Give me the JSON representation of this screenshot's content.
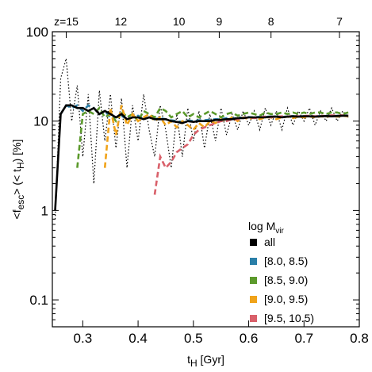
{
  "chart_data": {
    "type": "line",
    "xlabel": [
      "t",
      "H",
      " [Gyr]"
    ],
    "ylabel": [
      "<f",
      "esc",
      "> (< t",
      "H",
      ") [%]"
    ],
    "legend_title": [
      "log M",
      "vir"
    ],
    "legend": "lower right",
    "ylog": true,
    "xlim": [
      0.245,
      0.8
    ],
    "xticks": [
      0.3,
      0.4,
      0.5,
      0.6,
      0.7,
      0.8
    ],
    "ylim": [
      0.05,
      100
    ],
    "yticks": [
      0.1,
      1,
      10,
      100
    ],
    "x2ticks": [
      {
        "value": 15,
        "label": "z=15"
      },
      12,
      10,
      9,
      8,
      7
    ],
    "x": [
      0.25,
      0.26,
      0.27,
      0.28,
      0.29,
      0.3,
      0.31,
      0.32,
      0.33,
      0.34,
      0.35,
      0.36,
      0.37,
      0.38,
      0.39,
      0.4,
      0.41,
      0.42,
      0.43,
      0.44,
      0.45,
      0.46,
      0.47,
      0.48,
      0.49,
      0.5,
      0.51,
      0.52,
      0.53,
      0.54,
      0.55,
      0.56,
      0.57,
      0.58,
      0.59,
      0.6,
      0.61,
      0.62,
      0.63,
      0.64,
      0.65,
      0.66,
      0.67,
      0.68,
      0.69,
      0.7,
      0.71,
      0.72,
      0.73,
      0.74,
      0.75,
      0.76,
      0.77,
      0.78
    ],
    "series": [
      {
        "name": null,
        "color": "#000000",
        "dash": "dotted",
        "values": [
          0.8,
          30,
          50,
          10,
          25,
          4,
          20,
          2,
          22,
          6,
          20,
          5,
          18,
          3,
          15,
          6,
          20,
          8,
          4,
          15,
          8,
          3,
          12,
          4,
          14,
          6,
          13,
          5,
          12,
          6,
          14,
          7,
          12,
          8,
          13,
          9,
          13,
          8,
          14,
          9,
          13,
          8,
          14,
          9,
          13,
          10,
          14,
          9,
          13,
          10,
          14,
          10,
          13,
          11
        ]
      },
      {
        "name": "[8.0, 8.5)",
        "color": "#2a7fa8",
        "dash": "dashed",
        "values": [
          null,
          12,
          15,
          14,
          15,
          13,
          15,
          14,
          12,
          13,
          11,
          11,
          11.5,
          10.5,
          11,
          11.5,
          10.5,
          11,
          10.5,
          10.8,
          10.5,
          10.2,
          10,
          9.8,
          10.2,
          10,
          10.2,
          10.2,
          10.4,
          10.5,
          10.5,
          10.8,
          10.6,
          11,
          10.9,
          11.1,
          11,
          11.2,
          11.1,
          11.3,
          11.2,
          11.1,
          11.3,
          11.4,
          11.2,
          11.4,
          11.3,
          11.3,
          11.4,
          11.5,
          11.3,
          11.5,
          11.6,
          11.5
        ]
      },
      {
        "name": "[8.5, 9.0)",
        "color": "#5c9a2c",
        "dash": "dashed",
        "values": [
          null,
          null,
          null,
          null,
          3,
          12,
          13,
          12,
          14,
          11,
          12,
          10,
          13,
          11,
          12,
          10,
          13,
          12,
          11,
          14,
          13,
          11,
          12,
          13,
          11,
          12,
          11,
          12,
          13,
          12,
          11,
          12,
          12.5,
          11.5,
          12,
          12.5,
          12,
          11.5,
          12.5,
          12,
          12,
          12.5,
          12,
          12.5,
          12,
          12.5,
          12,
          12.5,
          12.5,
          12,
          12.5,
          12.5,
          12,
          12.5
        ]
      },
      {
        "name": "[9.0, 9.5)",
        "color": "#f0a31a",
        "dash": "dashed",
        "values": [
          null,
          null,
          null,
          null,
          null,
          null,
          null,
          null,
          null,
          3,
          14,
          7,
          15,
          9,
          12,
          10,
          11,
          12,
          10,
          11,
          9,
          10,
          8.5,
          10,
          9,
          8,
          9.5,
          8.5,
          10,
          9.5,
          10.5,
          10,
          11,
          10,
          11,
          10.5,
          11,
          10.5,
          11,
          11,
          10.5,
          11,
          11.2,
          10.8,
          11.2,
          11,
          11.3,
          11,
          11.3,
          11.2,
          11.4,
          11.2,
          11.5,
          11.3
        ]
      },
      {
        "name": "[9.5, 10.5)",
        "color": "#d9606a",
        "dash": "dashed",
        "values": [
          null,
          null,
          null,
          null,
          null,
          null,
          null,
          null,
          null,
          null,
          null,
          null,
          null,
          null,
          null,
          null,
          null,
          null,
          1.5,
          4,
          3,
          3.5,
          4.5,
          5,
          5.5,
          7,
          8,
          8.5,
          9,
          9.5,
          10,
          10,
          10.5,
          10.5,
          10.8,
          11,
          10.8,
          11,
          11.2,
          11,
          11.2,
          11.3,
          11.2,
          11.4,
          11.3,
          11.4,
          11.5,
          11.3,
          11.5,
          11.4,
          11.6,
          11.5,
          11.6,
          11.5
        ]
      },
      {
        "name": "all",
        "color": "#000000",
        "dash": "solid",
        "values": [
          1,
          12,
          15,
          15,
          14,
          14,
          13,
          14,
          12,
          13,
          12,
          11,
          12,
          10.5,
          11,
          11,
          10.5,
          11,
          10.5,
          10.5,
          10.5,
          10,
          9.8,
          9.5,
          10,
          9.8,
          10,
          10,
          10,
          10.3,
          10.3,
          10.5,
          10.5,
          10.8,
          10.8,
          11,
          11,
          11,
          11,
          11.2,
          11.2,
          11,
          11.2,
          11.3,
          11.2,
          11.3,
          11.3,
          11.2,
          11.3,
          11.4,
          11.3,
          11.4,
          11.5,
          11.5
        ]
      }
    ],
    "legend_order": [
      5,
      1,
      2,
      3,
      4
    ]
  }
}
